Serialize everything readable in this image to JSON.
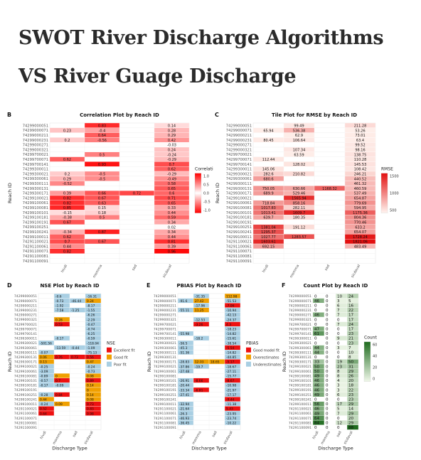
{
  "page": {
    "title_line1": "SWOT River Discharge Algorithms",
    "title_line2": "VS River Guage Discharge"
  },
  "reach_ids": [
    "74299000051",
    "74299000071",
    "74299000211",
    "74299000231",
    "74299000271",
    "74299000321",
    "74299700021",
    "74299700071",
    "74299700141",
    "74299300011",
    "74299300021",
    "74299300061",
    "74299300111",
    "74299300131",
    "74299300171",
    "74299100021",
    "74299100061",
    "74299100081",
    "74299100101",
    "74299100181",
    "74299100191",
    "74299100251",
    "74299100241",
    "74299100011",
    "74291100021",
    "74291100061",
    "74291100071",
    "74291100081",
    "74291100091"
  ],
  "chart_data": [
    {
      "type": "heatmap",
      "panel_letter": "B",
      "title": "Correlation Plot by Reach ID",
      "xlabel": "Discharge Type",
      "ylabel": "Reach ID",
      "categories": [
        "hivdi",
        "momma",
        "sad",
        "sicdaval"
      ],
      "legend": {
        "title": "Correlation",
        "ticks": [
          "1.0",
          "0.5",
          "0.0",
          "-0.5",
          "-1.0"
        ]
      },
      "values": [
        [
          null,
          0.83,
          null,
          0.14
        ],
        [
          0.23,
          -0.4,
          null,
          0.28
        ],
        [
          null,
          0.64,
          null,
          0.29
        ],
        [
          0.2,
          -0.56,
          null,
          0.42
        ],
        [
          null,
          null,
          null,
          -0.03
        ],
        [
          null,
          null,
          null,
          0.24
        ],
        [
          null,
          0.5,
          null,
          -0.24
        ],
        [
          0.62,
          null,
          null,
          -0.29
        ],
        [
          null,
          0.93,
          null,
          0.7
        ],
        [
          null,
          null,
          null,
          0.62
        ],
        [
          0.2,
          -0.5,
          null,
          -0.29
        ],
        [
          0.29,
          -0.5,
          null,
          -0.49
        ],
        [
          -0.52,
          null,
          null,
          0.58
        ],
        [
          null,
          null,
          null,
          0.65
        ],
        [
          0.39,
          0.66,
          0.72,
          0.6
        ],
        [
          0.82,
          0.67,
          null,
          0.71
        ],
        [
          0.82,
          0.63,
          null,
          0.65
        ],
        [
          0.85,
          0.15,
          null,
          0.33
        ],
        [
          -0.15,
          0.18,
          null,
          0.44
        ],
        [
          -0.38,
          0.5,
          null,
          0.59
        ],
        [
          0.67,
          null,
          null,
          0.34
        ],
        [
          null,
          null,
          null,
          0.02
        ],
        [
          -0.34,
          0.87,
          null,
          0.34
        ],
        [
          0.62,
          null,
          null,
          0.44
        ],
        [
          0.7,
          0.67,
          null,
          0.81
        ],
        [
          0.44,
          null,
          null,
          0.39
        ],
        [
          0.82,
          null,
          null,
          0.96
        ],
        [
          null,
          null,
          null,
          null
        ],
        [
          null,
          null,
          null,
          null
        ]
      ]
    },
    {
      "type": "heatmap",
      "panel_letter": "C",
      "title": "Tile Plot for RMSE by Reach ID",
      "xlabel": "Discharge Type",
      "ylabel": "Reach ID",
      "categories": [
        "hivdi",
        "momma",
        "sad",
        "sicdaval"
      ],
      "legend": {
        "title": "RMSE",
        "ticks": [
          "1500",
          "1000",
          "500"
        ]
      },
      "values": [
        [
          null,
          99.49,
          null,
          211.28
        ],
        [
          65.94,
          536.38,
          null,
          53.26
        ],
        [
          null,
          62.9,
          null,
          73.01
        ],
        [
          80.45,
          106.64,
          null,
          63.4
        ],
        [
          null,
          null,
          null,
          99.52
        ],
        [
          null,
          107.34,
          null,
          98.16
        ],
        [
          null,
          63.59,
          null,
          138.75
        ],
        [
          112.44,
          null,
          null,
          110.28
        ],
        [
          null,
          128.02,
          null,
          145.53
        ],
        [
          145.06,
          null,
          null,
          108.42
        ],
        [
          282.6,
          210.82,
          null,
          246.21
        ],
        [
          680.6,
          null,
          null,
          440.52
        ],
        [
          null,
          null,
          null,
          461.32
        ],
        [
          750.05,
          630.66,
          1168.32,
          460.59
        ],
        [
          689.9,
          529.46,
          null,
          537.49
        ],
        [
          null,
          1565.94,
          null,
          654.87
        ],
        [
          718.84,
          858.16,
          null,
          779.69
        ],
        [
          1017.83,
          282.11,
          null,
          594.95
        ],
        [
          1013.41,
          1609.7,
          null,
          1175.36
        ],
        [
          639.7,
          180.35,
          null,
          804.36
        ],
        [
          null,
          null,
          null,
          770.46
        ],
        [
          1381.04,
          191.12,
          null,
          633.2
        ],
        [
          1295.37,
          null,
          null,
          654.07
        ],
        [
          1027.77,
          1283.57,
          null,
          1728.24
        ],
        [
          1603.61,
          null,
          null,
          1821.06
        ],
        [
          692.15,
          null,
          null,
          483.49
        ],
        [
          null,
          null,
          null,
          null
        ],
        [
          null,
          null,
          null,
          null
        ],
        [
          null,
          null,
          null,
          null
        ]
      ]
    },
    {
      "type": "heatmap",
      "panel_letter": "D",
      "title": "NSE Plot by Reach ID",
      "xlabel": "Discharge Type",
      "ylabel": "Reach ID",
      "categories": [
        "hivdi",
        "momma",
        "sad",
        "sicdaval"
      ],
      "legend": {
        "title": "NSE",
        "items": [
          {
            "label": "Excellent fit",
            "color": "#ee1111"
          },
          {
            "label": "Good fit",
            "color": "#f0a000"
          },
          {
            "label": "Poor fit",
            "color": "#a9cfe3"
          }
        ]
      },
      "values": [
        [
          null,
          -0.6,
          null,
          -16.31
        ],
        [
          null,
          -0.73,
          -46.44,
          0.24
        ],
        [
          null,
          -1.92,
          null,
          -8.17
        ],
        [
          null,
          -7.58,
          -1.25,
          -1.55
        ],
        [
          null,
          null,
          null,
          -6.26
        ],
        [
          null,
          0.28,
          null,
          -2.29
        ],
        [
          null,
          0.53,
          null,
          -0.47
        ],
        [
          null,
          null,
          null,
          -0.74
        ],
        [
          null,
          null,
          null,
          -6.25
        ],
        [
          null,
          -0.17,
          null,
          -0.59
        ],
        [
          -501.56,
          null,
          null,
          -118.04
        ],
        [
          null,
          -13.59,
          -0.44,
          -1.09
        ],
        [
          -0.07,
          null,
          null,
          -75.13
        ],
        [
          0.06,
          0.76,
          0.73,
          0.56
        ],
        [
          0.13,
          null,
          null,
          0.47
        ],
        [
          -0.25,
          null,
          null,
          -0.24
        ],
        [
          -3.09,
          null,
          null,
          -0.73
        ],
        [
          -0.89,
          0.0,
          null,
          0.08
        ],
        [
          -0.57,
          0.7,
          null,
          0.89
        ],
        [
          -0.17,
          -0.09,
          null,
          0.14
        ],
        [
          null,
          null,
          null,
          0.0
        ],
        [
          -0.28,
          0.84,
          null,
          0.14
        ],
        [
          0.44,
          null,
          null,
          0.08
        ],
        [
          -0.24,
          0.09,
          null,
          0.73
        ],
        [
          0.52,
          null,
          null,
          0.83
        ],
        [
          0.64,
          null,
          null,
          0.98
        ],
        [
          null,
          null,
          null,
          null
        ],
        [
          null,
          null,
          null,
          null
        ],
        [
          null,
          null,
          null,
          null
        ]
      ]
    },
    {
      "type": "heatmap",
      "panel_letter": "E",
      "title": "PBIAS Plot by Reach ID",
      "xlabel": "Discharge Type",
      "ylabel": "Reach ID",
      "categories": [
        "hivdi",
        "momma",
        "sad",
        "sicdaval"
      ],
      "legend": {
        "title": "PBIAS",
        "items": [
          {
            "label": "Good model fit",
            "color": "#ee1111"
          },
          {
            "label": "Overestimates",
            "color": "#f0a000"
          },
          {
            "label": "Underestimates",
            "color": "#a9cfe3"
          }
        ]
      },
      "values": [
        [
          null,
          -31.35,
          null,
          112.98
        ],
        [
          -91.6,
          27.42,
          null,
          -51.53
        ],
        [
          null,
          -17.96,
          null,
          -7.06
        ],
        [
          -55.11,
          11.25,
          null,
          -10.94
        ],
        [
          null,
          null,
          null,
          -42.13
        ],
        [
          null,
          -12.53,
          null,
          -24.37
        ],
        [
          null,
          -3.26,
          null,
          4.3
        ],
        [
          null,
          null,
          null,
          -18.23
        ],
        [
          -55.98,
          null,
          null,
          -14.82
        ],
        [
          null,
          -18.2,
          null,
          -15.61
        ],
        [
          -56.5,
          null,
          null,
          -38.54
        ],
        [
          -45.3,
          null,
          null,
          -5.54
        ],
        [
          -51.36,
          null,
          null,
          -14.82
        ],
        [
          null,
          null,
          null,
          -44.85
        ],
        [
          -28.83,
          12.03,
          18.65,
          -5.17
        ],
        [
          -37.86,
          -19.7,
          null,
          -18.67
        ],
        [
          -27.48,
          null,
          null,
          -27.11
        ],
        [
          null,
          null,
          null,
          -15.77
        ],
        [
          -26.91,
          -8.66,
          null,
          -8.67
        ],
        [
          -20.44,
          null,
          null,
          -10.98
        ],
        [
          -33.34,
          -6.81,
          null,
          -21.97
        ],
        [
          -27.41,
          null,
          null,
          -17.17
        ],
        [
          null,
          null,
          null,
          -9.44
        ],
        [
          -32.94,
          null,
          null,
          -11.38
        ],
        [
          -21.64,
          null,
          null,
          5.43
        ],
        [
          -26.3,
          null,
          null,
          -23.95
        ],
        [
          -46.93,
          null,
          null,
          -23.74
        ],
        [
          -36.45,
          null,
          null,
          -10.22
        ],
        [
          null,
          null,
          null,
          null
        ]
      ]
    },
    {
      "type": "heatmap",
      "panel_letter": "F",
      "title": "Count Plot by Reach ID",
      "xlabel": "Discharge Type",
      "ylabel": "Reach ID",
      "categories": [
        "hivdi",
        "momma",
        "sad",
        "sicdaval"
      ],
      "legend": {
        "title": "Count",
        "ticks": [
          "60",
          "40",
          "20",
          "0"
        ]
      },
      "values": [
        [
          0,
          0,
          10,
          24
        ],
        [
          46,
          0,
          3,
          5
        ],
        [
          0,
          0,
          6,
          16
        ],
        [
          0,
          0,
          7,
          22
        ],
        [
          46,
          0,
          7,
          17
        ],
        [
          0,
          0,
          0,
          17
        ],
        [
          0,
          0,
          7,
          24
        ],
        [
          47,
          0,
          0,
          17
        ],
        [
          61,
          0,
          0,
          23
        ],
        [
          0,
          0,
          9,
          21
        ],
        [
          0,
          0,
          0,
          23
        ],
        [
          44,
          0,
          3,
          7
        ],
        [
          44,
          0,
          0,
          10
        ],
        [
          0,
          0,
          0,
          8
        ],
        [
          33,
          0,
          19,
          50
        ],
        [
          50,
          0,
          23,
          31
        ],
        [
          50,
          0,
          8,
          29
        ],
        [
          49,
          0,
          8,
          26
        ],
        [
          46,
          0,
          4,
          20
        ],
        [
          46,
          0,
          3,
          18
        ],
        [
          46,
          0,
          3,
          22
        ],
        [
          49,
          0,
          6,
          23
        ],
        [
          0,
          0,
          0,
          23
        ],
        [
          56,
          0,
          17,
          29
        ],
        [
          46,
          0,
          5,
          14
        ],
        [
          49,
          0,
          7,
          29
        ],
        [
          64,
          0,
          0,
          20
        ],
        [
          84,
          0,
          12,
          29
        ],
        [
          0,
          0,
          0,
          88
        ]
      ]
    }
  ]
}
